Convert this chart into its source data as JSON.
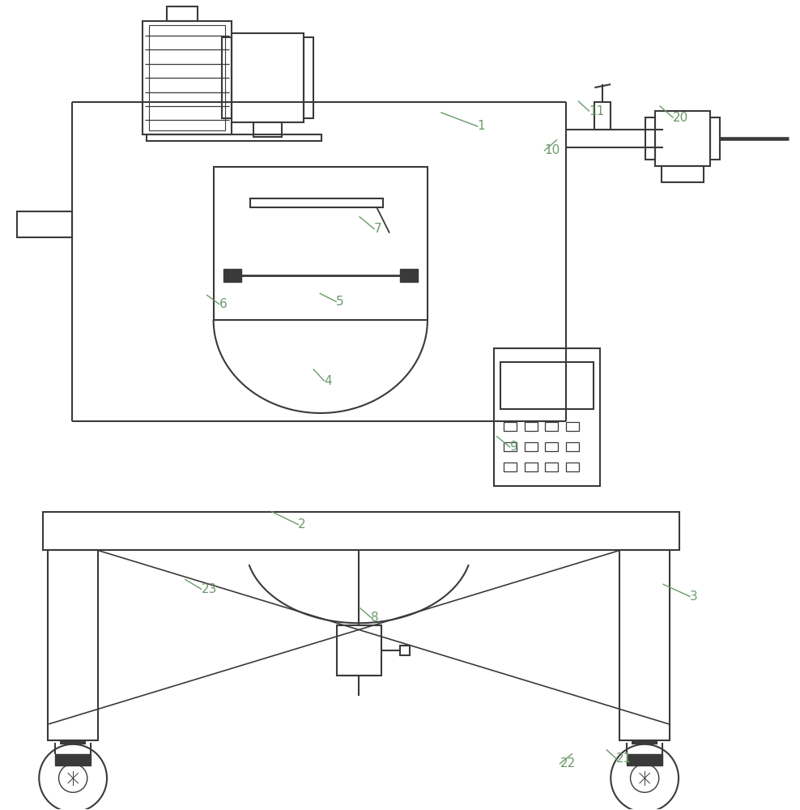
{
  "bg_color": "#ffffff",
  "line_color": "#3a3a3a",
  "label_color": "#6a9a6a",
  "lw": 1.5,
  "fig_width": 9.88,
  "fig_height": 10.0
}
